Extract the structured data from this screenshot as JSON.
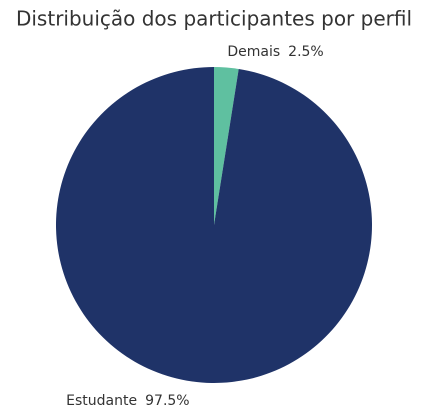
{
  "chart_data": {
    "type": "pie",
    "title": "Distribuição dos participantes por perfil",
    "categories": [
      "Demais",
      "Estudante"
    ],
    "values": [
      2.5,
      97.5
    ],
    "value_labels": [
      "2.5%",
      "97.5%"
    ],
    "colors": [
      "#5fc0a0",
      "#1f3368"
    ]
  }
}
